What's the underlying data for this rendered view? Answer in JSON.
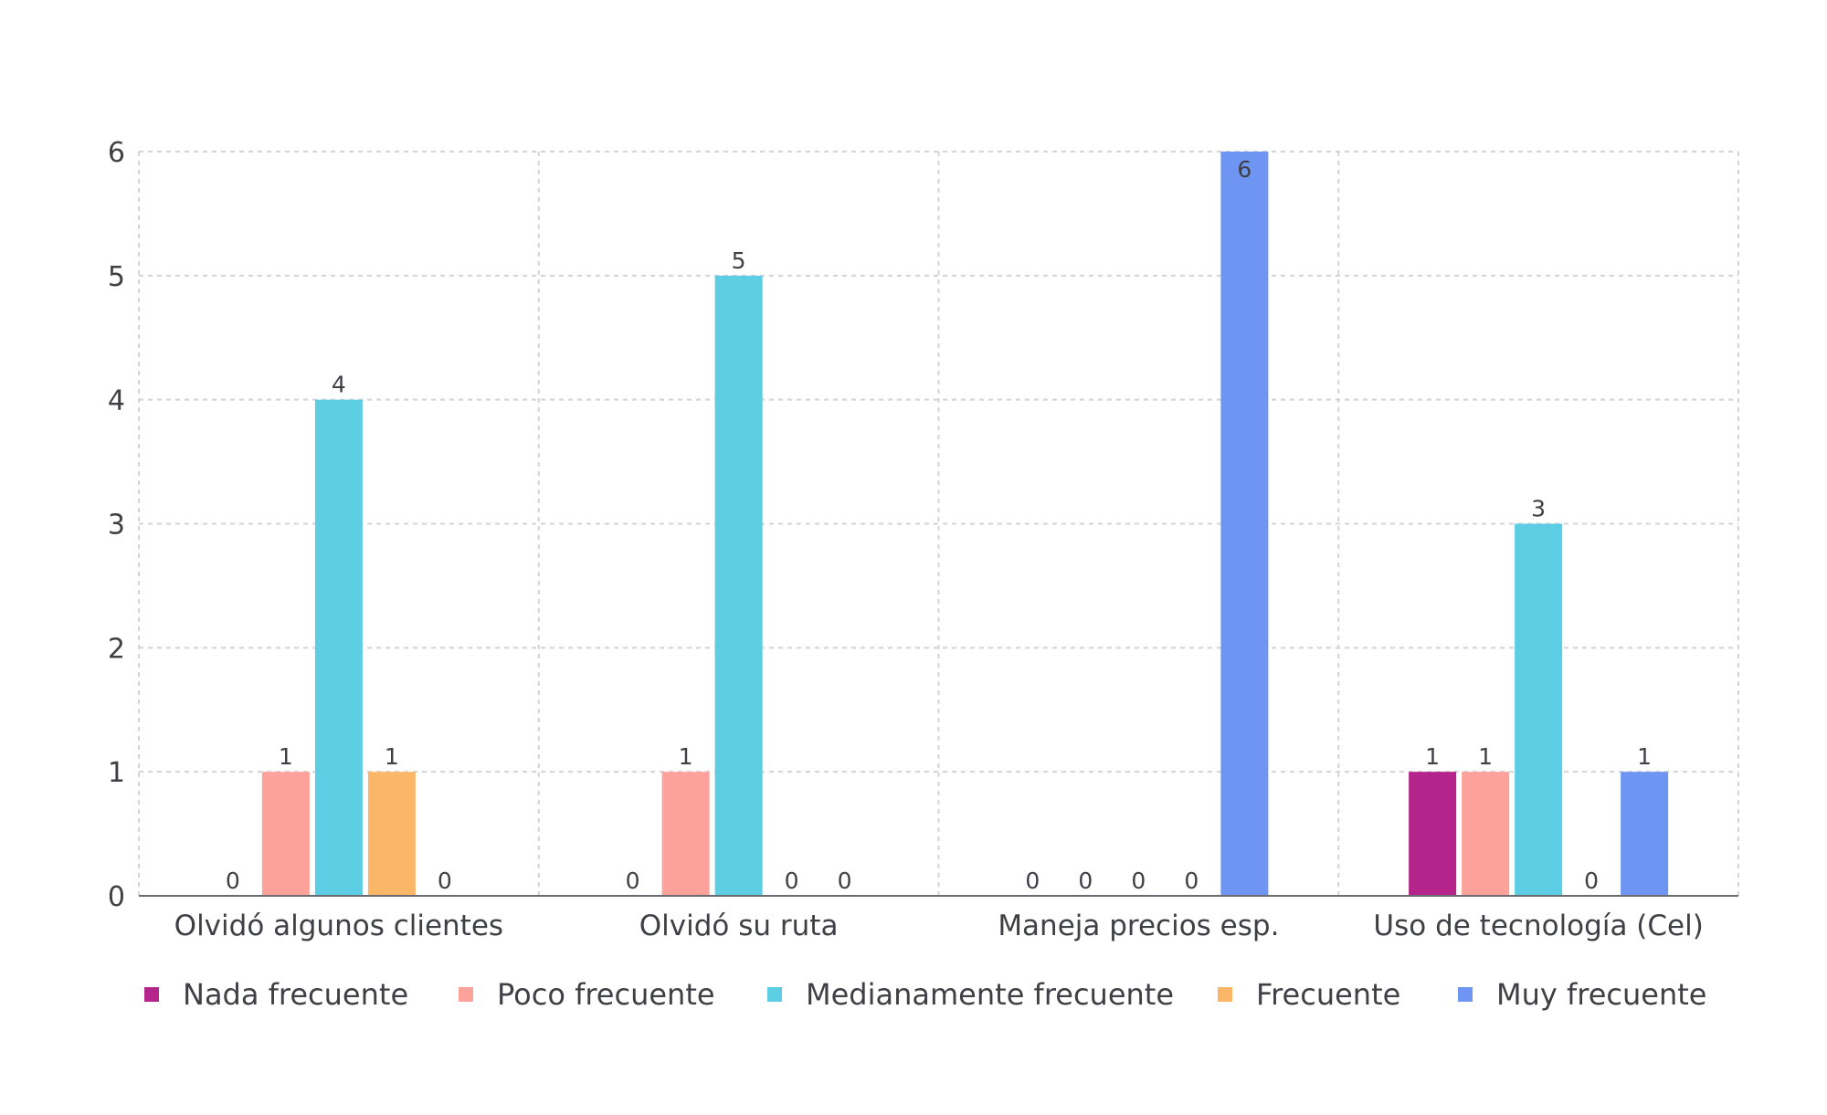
{
  "chart_data": {
    "type": "bar",
    "title": "",
    "xlabel": "",
    "ylabel": "",
    "ylim": [
      0,
      6
    ],
    "yticks": [
      "0",
      "1",
      "2",
      "3",
      "4",
      "5",
      "6"
    ],
    "grid": true,
    "legend_position": "bottom",
    "categories": [
      "Olvidó algunos clientes",
      "Olvidó su ruta",
      "Maneja precios esp.",
      "Uso de tecnología (Cel)"
    ],
    "series": [
      {
        "name": "Nada frecuente",
        "color": "#b5248b",
        "values": [
          0,
          0,
          0,
          1
        ]
      },
      {
        "name": "Poco frecuente",
        "color": "#fca29a",
        "values": [
          1,
          1,
          0,
          1
        ]
      },
      {
        "name": "Medianamente frecuente",
        "color": "#5ccde3",
        "values": [
          4,
          5,
          0,
          3
        ]
      },
      {
        "name": "Frecuente",
        "color": "#fbb668",
        "values": [
          1,
          0,
          0,
          0
        ]
      },
      {
        "name": "Muy frecuente",
        "color": "#6f95f2",
        "values": [
          0,
          0,
          6,
          1
        ]
      }
    ]
  }
}
